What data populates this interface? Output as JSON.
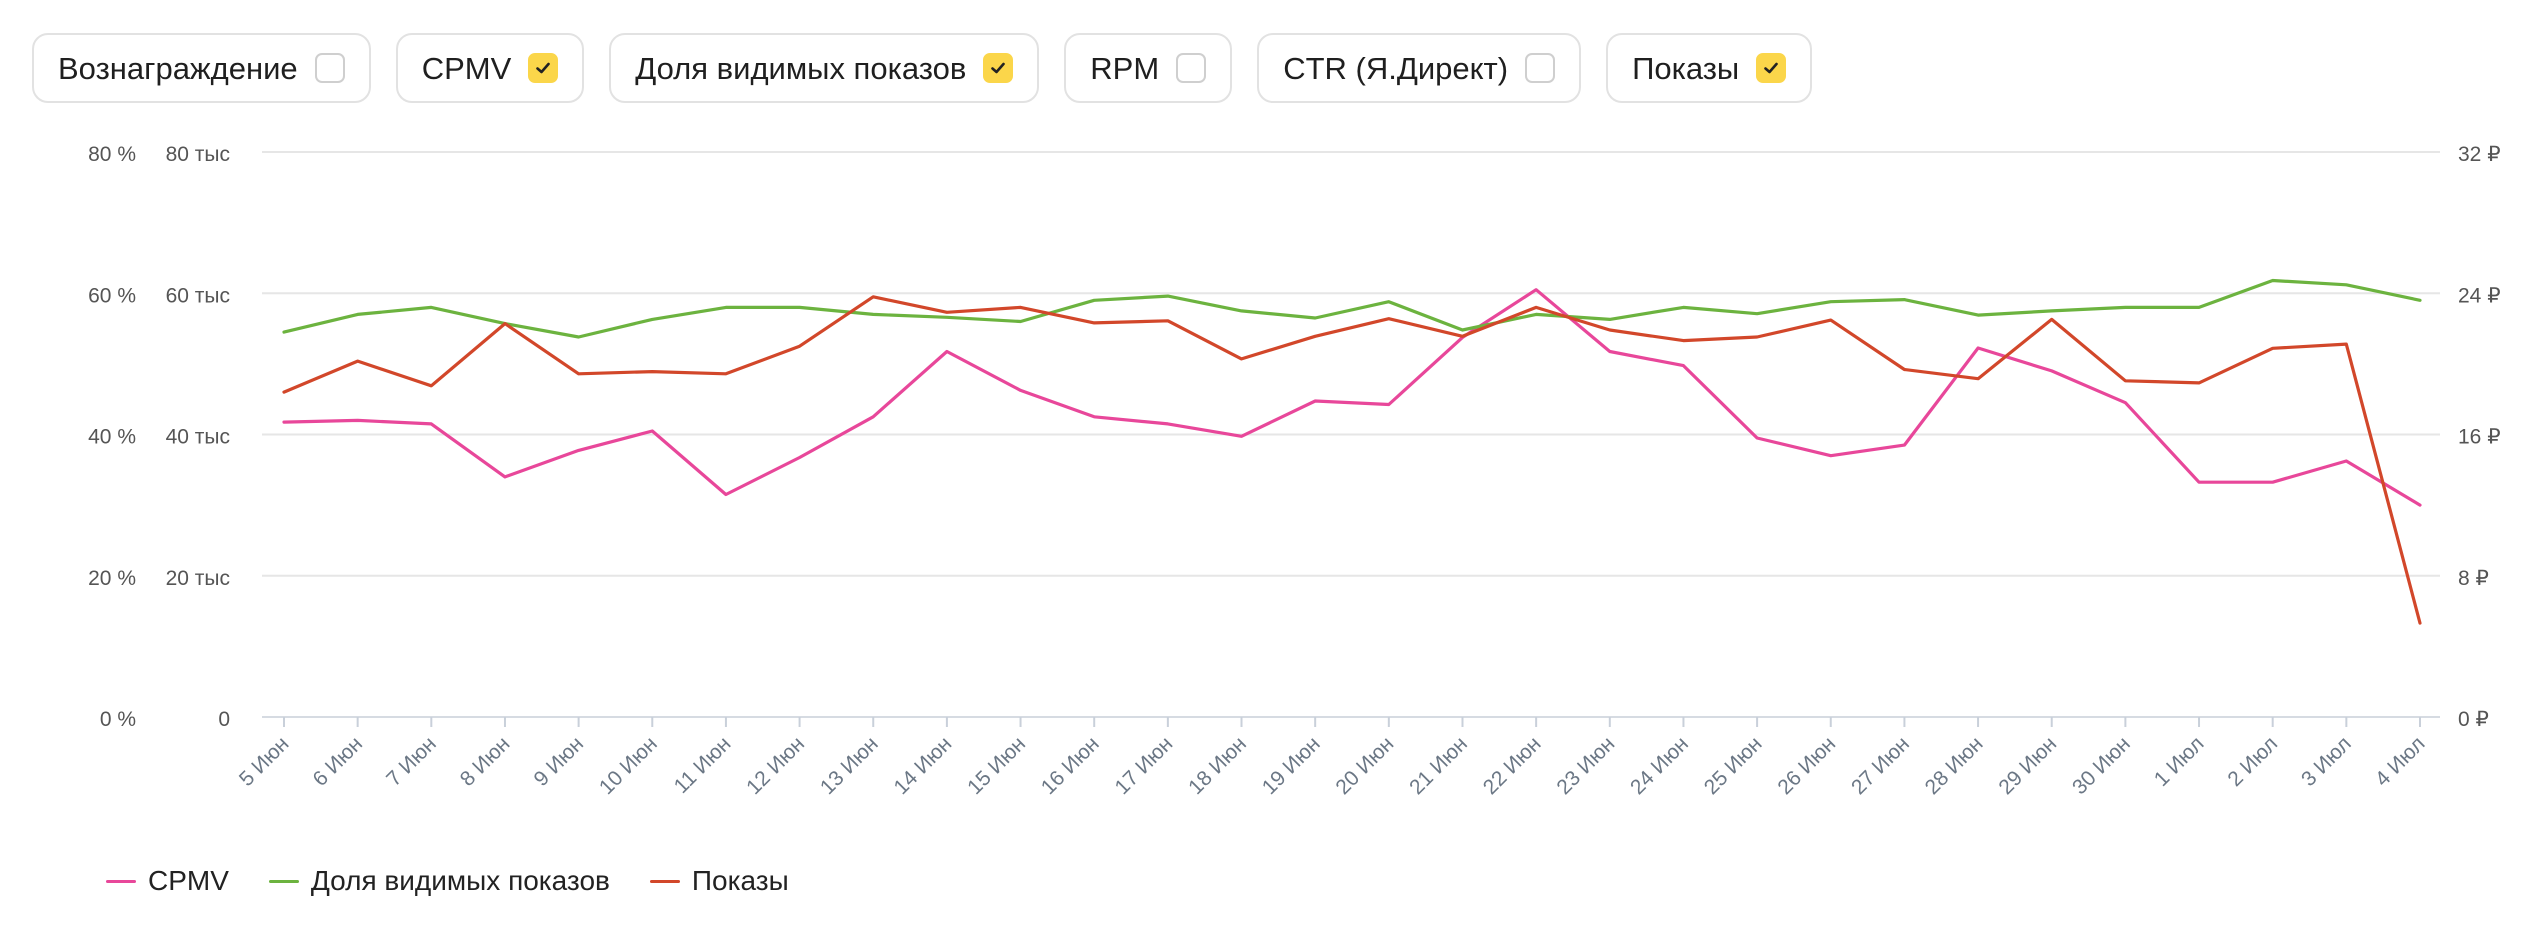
{
  "metric_toggles": [
    {
      "label": "Вознаграждение",
      "checked": false
    },
    {
      "label": "CPMV",
      "checked": true
    },
    {
      "label": "Доля видимых показов",
      "checked": true
    },
    {
      "label": "RPM",
      "checked": false
    },
    {
      "label": "CTR (Я.Директ)",
      "checked": false
    },
    {
      "label": "Показы",
      "checked": true
    }
  ],
  "colors": {
    "cpmv": "#e8479a",
    "viewability": "#6cb33f",
    "impressions": "#d2472a",
    "checkbox_on": "#fbd64a",
    "grid": "#e6e6e6",
    "axis_text": "#555555",
    "tick_text": "#6b7785"
  },
  "chart_data": {
    "type": "line",
    "x": [
      "5 Июн",
      "6 Июн",
      "7 Июн",
      "8 Июн",
      "9 Июн",
      "10 Июн",
      "11 Июн",
      "12 Июн",
      "13 Июн",
      "14 Июн",
      "15 Июн",
      "16 Июн",
      "17 Июн",
      "18 Июн",
      "19 Июн",
      "20 Июн",
      "21 Июн",
      "22 Июн",
      "23 Июн",
      "24 Июн",
      "25 Июн",
      "26 Июн",
      "27 Июн",
      "28 Июн",
      "29 Июн",
      "30 Июн",
      "1 Июл",
      "2 Июл",
      "3 Июл",
      "4 Июл"
    ],
    "axes": {
      "left_percent": {
        "ticks": [
          "0 %",
          "20 %",
          "40 %",
          "60 %",
          "80 %"
        ],
        "range": [
          0,
          80
        ]
      },
      "left_count": {
        "ticks": [
          "0",
          "20 тыс",
          "40 тыс",
          "60 тыс",
          "80 тыс"
        ],
        "range": [
          0,
          80000
        ]
      },
      "right_rub": {
        "ticks": [
          "0 ₽",
          "8 ₽",
          "16 ₽",
          "24 ₽",
          "32 ₽"
        ],
        "range": [
          0,
          32
        ]
      }
    },
    "grid": true,
    "legend_position": "bottom-left",
    "series": [
      {
        "name": "CPMV",
        "color_key": "cpmv",
        "axis": "right_rub",
        "values": [
          16.7,
          16.8,
          16.6,
          13.6,
          15.1,
          16.2,
          12.6,
          14.7,
          17.0,
          20.7,
          18.5,
          17.0,
          16.6,
          15.9,
          17.9,
          17.7,
          21.5,
          24.2,
          20.7,
          19.9,
          15.8,
          14.8,
          15.4,
          20.9,
          19.6,
          17.8,
          13.3,
          13.3,
          14.5,
          12.0
        ]
      },
      {
        "name": "Доля видимых показов",
        "color_key": "viewability",
        "axis": "left_percent",
        "values": [
          54.5,
          57.0,
          58.0,
          55.7,
          53.8,
          56.3,
          58.0,
          58.0,
          57.0,
          56.6,
          56.0,
          59.0,
          59.6,
          57.5,
          56.5,
          58.8,
          54.8,
          57.0,
          56.3,
          58.0,
          57.1,
          58.8,
          59.1,
          56.9,
          57.5,
          58.0,
          58.0,
          61.8,
          61.2,
          59.0
        ]
      },
      {
        "name": "Показы",
        "color_key": "impressions",
        "axis": "left_count",
        "values": [
          46000,
          50400,
          46900,
          55700,
          48600,
          48900,
          48600,
          52500,
          59500,
          57300,
          58000,
          55800,
          56100,
          50700,
          53900,
          56400,
          53900,
          58000,
          54800,
          53300,
          53800,
          56200,
          49200,
          47900,
          56300,
          47600,
          47300,
          52200,
          52800,
          13300
        ]
      }
    ]
  }
}
